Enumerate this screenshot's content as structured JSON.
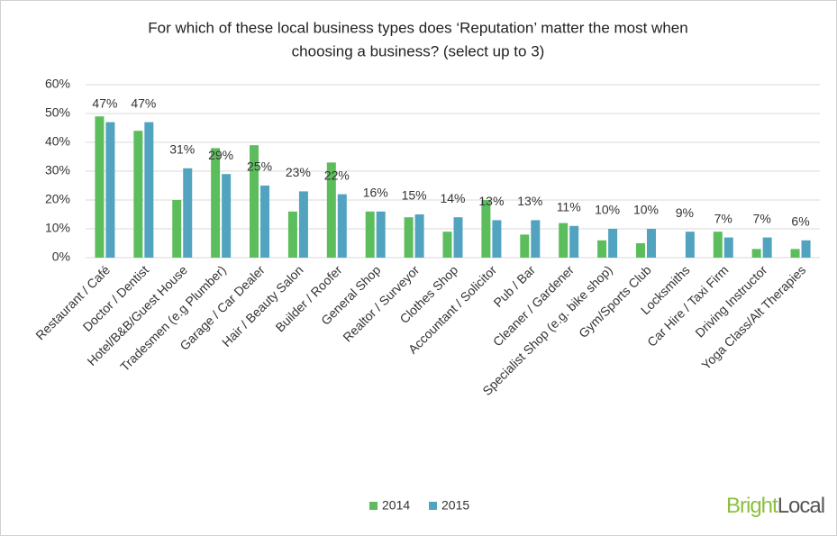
{
  "chart_data": {
    "type": "bar",
    "title": [
      "For which of these local business types does ‘Reputation’ matter the most when",
      "choosing a business? (select up to 3)"
    ],
    "categories": [
      "Restaurant / Café",
      "Doctor / Dentist",
      "Hotel/B&B/Guest House",
      "Tradesmen (e.g Plumber)",
      "Garage / Car Dealer",
      "Hair / Beauty Salon",
      "Builder / Roofer",
      "General Shop",
      "Realtor / Surveyor",
      "Clothes Shop",
      "Accountant / Solicitor",
      "Pub / Bar",
      "Cleaner / Gardener",
      "Specialist Shop (e.g. bike shop)",
      "Gym/Sports Club",
      "Locksmiths",
      "Car Hire / Taxi Firm",
      "Driving Instructor",
      "Yoga Class/Alt Therapies"
    ],
    "series": [
      {
        "name": "2014",
        "color": "#5cbd5c",
        "values": [
          49,
          44,
          20,
          38,
          39,
          16,
          33,
          16,
          14,
          9,
          20,
          8,
          12,
          6,
          5,
          null,
          9,
          3,
          3
        ]
      },
      {
        "name": "2015",
        "color": "#52a3c0",
        "values": [
          47,
          47,
          31,
          29,
          25,
          23,
          22,
          16,
          15,
          14,
          13,
          13,
          11,
          10,
          10,
          9,
          7,
          7,
          6
        ],
        "value_labels": [
          "47%",
          "47%",
          "31%",
          "29%",
          "25%",
          "23%",
          "22%",
          "16%",
          "15%",
          "14%",
          "13%",
          "13%",
          "11%",
          "10%",
          "10%",
          "9%",
          "7%",
          "7%",
          "6%"
        ]
      }
    ],
    "ylim": [
      0,
      60
    ],
    "yticks": [
      {
        "value": 0,
        "label": "0%"
      },
      {
        "value": 10,
        "label": "10%"
      },
      {
        "value": 20,
        "label": "20%"
      },
      {
        "value": 30,
        "label": "30%"
      },
      {
        "value": 40,
        "label": "40%"
      },
      {
        "value": 50,
        "label": "50%"
      },
      {
        "value": 60,
        "label": "60%"
      }
    ],
    "grid": true,
    "legend": "bottom"
  },
  "branding": {
    "logo_part1": "Bright",
    "logo_part2": "Local"
  }
}
